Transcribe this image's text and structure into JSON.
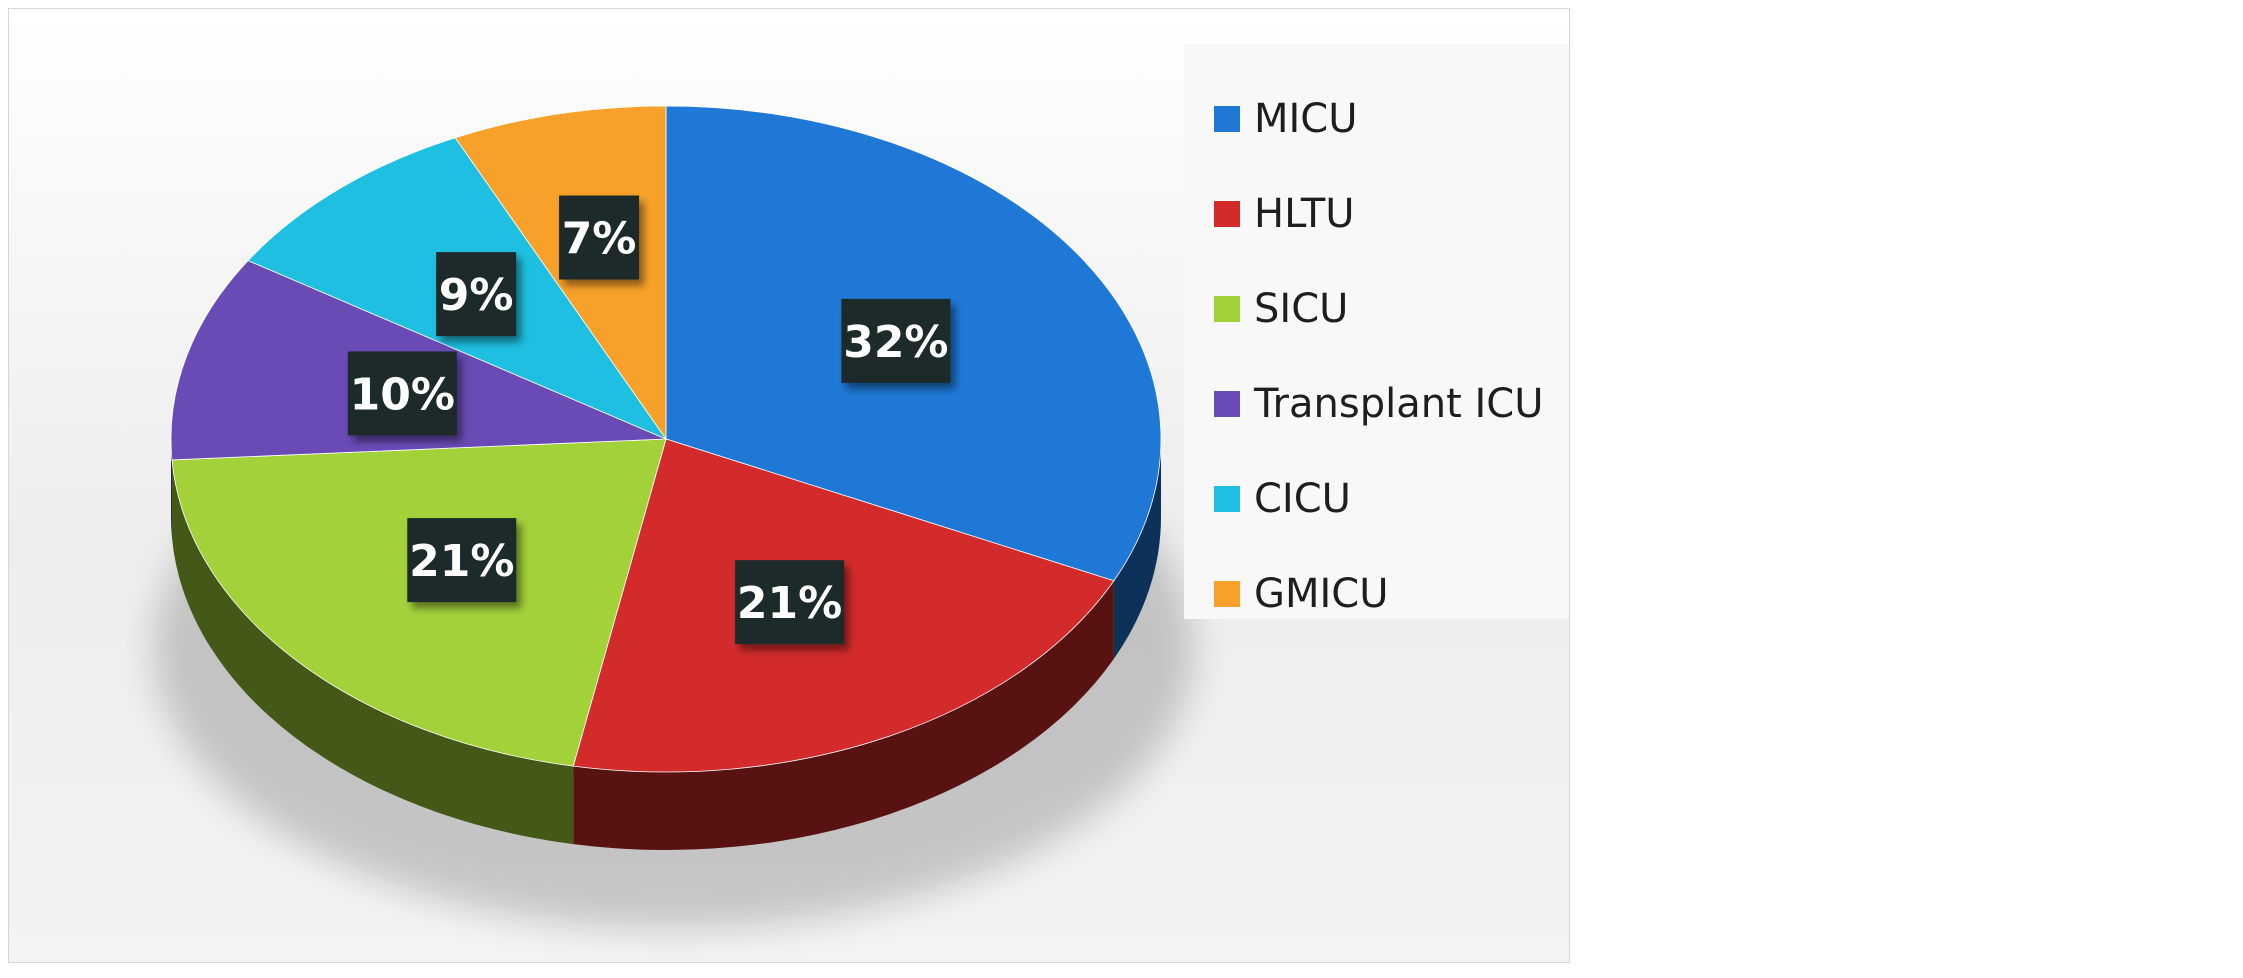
{
  "chart_data": {
    "type": "pie",
    "categories": [
      "MICU",
      "HLTU",
      "SICU",
      "Transplant ICU",
      "CICU",
      "GMICU"
    ],
    "values": [
      32,
      21,
      21,
      10,
      9,
      7
    ],
    "value_labels": [
      "32%",
      "21%",
      "21%",
      "10%",
      "9%",
      "7%"
    ],
    "colors": [
      "#1f78d6",
      "#d32b2b",
      "#a3d13a",
      "#6a4bb6",
      "#1ebfe0",
      "#f8a12a"
    ],
    "legend_position": "right",
    "style": "3d"
  }
}
